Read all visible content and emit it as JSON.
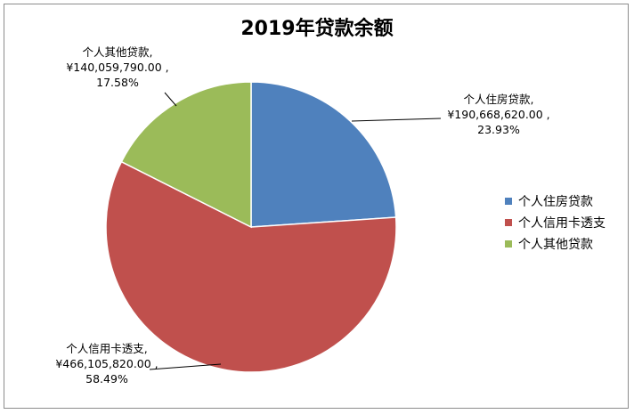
{
  "chart_data": {
    "type": "pie",
    "title": "2019年贷款余额",
    "slices": [
      {
        "label": "个人住房贷款",
        "value_text": "¥190,668,620.00",
        "value": 190668620.0,
        "percent": "23.93%",
        "color": "#4f81bd"
      },
      {
        "label": "个人信用卡透支",
        "value_text": "¥466,105,820.00",
        "value": 466105820.0,
        "percent": "58.49%",
        "color": "#c0504d"
      },
      {
        "label": "个人其他贷款",
        "value_text": "¥140,059,790.00",
        "value": 140059790.0,
        "percent": "17.58%",
        "color": "#9bbb59"
      }
    ],
    "legend_position": "right"
  }
}
